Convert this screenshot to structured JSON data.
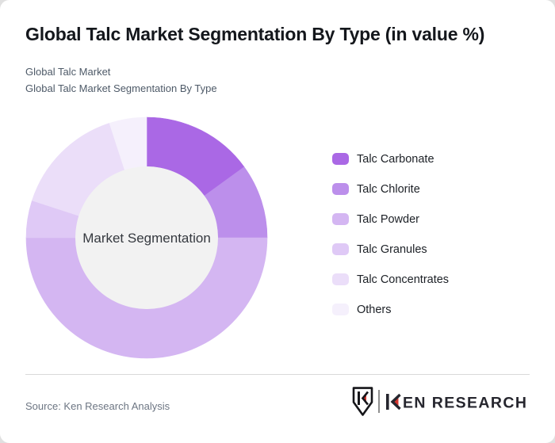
{
  "header": {
    "title": "Global Talc Market Segmentation By Type (in value %)",
    "subtitle_line1": "Global Talc Market",
    "subtitle_line2": "Global Talc Market Segmentation By Type"
  },
  "chart_data": {
    "type": "pie",
    "variant": "donut",
    "title": "Global Talc Market Segmentation By Type (in value %)",
    "center_label": "Market Segmentation",
    "categories": [
      "Talc Carbonate",
      "Talc Chlorite",
      "Talc Powder",
      "Talc Granules",
      "Talc Concentrates",
      "Others"
    ],
    "values": [
      15,
      10,
      50,
      5,
      15,
      5
    ],
    "unit": "percent of value",
    "colors": [
      "#aa68e5",
      "#bc8feb",
      "#d4b6f2",
      "#dfc9f6",
      "#ebdef9",
      "#f5f0fc"
    ],
    "start_angle_deg": 0,
    "direction": "clockwise",
    "legend_position": "right",
    "hole_color": "#f2f2f2",
    "data_labels_shown": false
  },
  "footer": {
    "source": "Source: Ken Research Analysis",
    "logo": {
      "brand": "KEN RESEARCH",
      "brand_rest": "EN RESEARCH",
      "accent_color": "#d6362f",
      "text_color": "#26262e"
    }
  }
}
